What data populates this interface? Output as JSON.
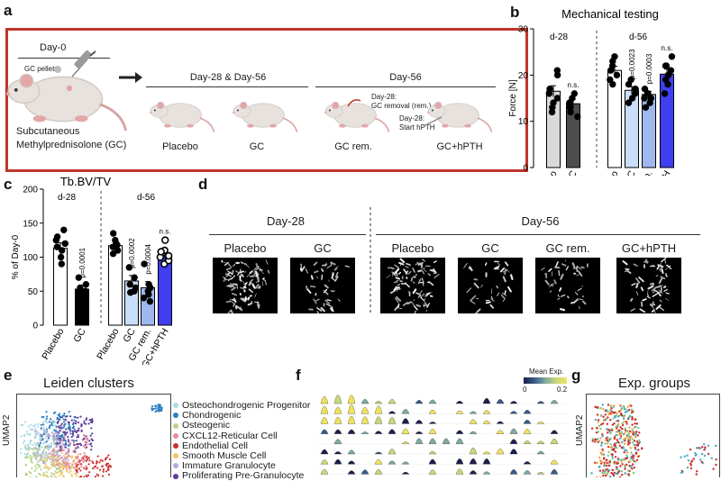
{
  "panel_labels": {
    "a": "a",
    "b": "b",
    "c": "c",
    "d": "d",
    "e": "e",
    "f": "f",
    "g": "g"
  },
  "panel_a": {
    "day0": "Day-0",
    "gc_pellet": "GC pellet",
    "subcutaneous": "Subcutaneous",
    "methylpred": "Methylprednisolone (GC)",
    "day28_56": "Day-28 & Day-56",
    "day56": "Day-56",
    "groups": [
      "Placebo",
      "GC",
      "GC rem.",
      "GC+hPTH"
    ],
    "note_removal_1": "Day-28:",
    "note_removal_2": "GC removal (rem.)",
    "note_hpth_1": "Day-28:",
    "note_hpth_2": "Start hPTH",
    "colors": {
      "border": "#c0352b",
      "mouse": "#e8e2df",
      "mouse_ear": "#e3a7a7",
      "syringe": "#8a8a8a"
    }
  },
  "chart_data": [
    {
      "id": "mechanical-testing",
      "type": "bar",
      "title": "Mechanical testing",
      "ylabel": "Force [N]",
      "ylim": [
        0,
        30
      ],
      "yticks": [
        0,
        10,
        20,
        30
      ],
      "groups": [
        "d-28",
        "d-56"
      ],
      "categories": [
        "Placebo",
        "GC",
        "Placebo",
        "GC",
        "GC rem.",
        "GC+hPTH"
      ],
      "group_index": [
        0,
        0,
        1,
        1,
        1,
        1
      ],
      "values": [
        16.5,
        13.8,
        21.0,
        16.7,
        15.8,
        20.2
      ],
      "errors": [
        1.2,
        1.0,
        0.9,
        0.8,
        0.7,
        1.1
      ],
      "points": [
        [
          21,
          20,
          16,
          13,
          15,
          17,
          12,
          14
        ],
        [
          16,
          12,
          14,
          11,
          15,
          13
        ],
        [
          24,
          22,
          21,
          20,
          18,
          23,
          19
        ],
        [
          17,
          14,
          16,
          19,
          18,
          15
        ],
        [
          16,
          15,
          14,
          17,
          13,
          16,
          15
        ],
        [
          24,
          22,
          20,
          18,
          21,
          16,
          19,
          22
        ]
      ],
      "fills": [
        "#d9d9d9",
        "#4d4d4d",
        "#ffffff",
        "#c9defa",
        "#9fb8ef",
        "#3f3ff0"
      ],
      "point_colors": [
        "#000000",
        "#000000",
        "#000000",
        "#000000",
        "#000000",
        "#000000"
      ],
      "annotations": [
        "",
        "n.s.",
        "",
        "p=0.0023",
        "p=0.0003",
        "n.s."
      ]
    },
    {
      "id": "tb-bv-tv",
      "type": "bar",
      "title": "Tb.BV/TV",
      "ylabel": "% of Day-0",
      "ylim": [
        0,
        200
      ],
      "yticks": [
        0,
        50,
        100,
        150,
        200
      ],
      "groups": [
        "d-28",
        "d-56"
      ],
      "categories": [
        "Placebo",
        "GC",
        "Placebo",
        "GC",
        "GC rem.",
        "GC+hPTH"
      ],
      "group_index": [
        0,
        0,
        1,
        1,
        1,
        1
      ],
      "values": [
        113,
        53,
        117,
        65,
        55,
        103
      ],
      "errors": [
        8,
        6,
        5,
        8,
        9,
        6
      ],
      "points": [
        [
          140,
          120,
          115,
          100,
          90,
          110,
          125,
          130
        ],
        [
          60,
          45,
          38,
          55,
          70,
          50
        ],
        [
          135,
          120,
          110,
          105,
          125,
          115,
          118
        ],
        [
          85,
          70,
          55,
          60,
          50,
          48
        ],
        [
          90,
          60,
          50,
          40,
          35,
          55,
          45
        ],
        [
          125,
          110,
          100,
          90,
          108,
          95,
          102
        ]
      ],
      "fills": [
        "#ffffff",
        "#000000",
        "#ffffff",
        "#c9defa",
        "#9fb8ef",
        "#3f3ff0"
      ],
      "point_colors": [
        "#000000",
        "#000000",
        "#000000",
        "#000000",
        "#000000",
        "#ffffff"
      ],
      "annotations": [
        "",
        "p=0.0001",
        "",
        "p=0.0002",
        "p=0.0004",
        "n.s."
      ]
    }
  ],
  "panel_d": {
    "day28": "Day-28",
    "day56": "Day-56",
    "images": [
      "Placebo",
      "GC",
      "Placebo",
      "GC",
      "GC rem.",
      "GC+hPTH"
    ],
    "density": [
      0.85,
      0.45,
      0.8,
      0.3,
      0.32,
      0.55
    ]
  },
  "panel_e": {
    "title": "Leiden clusters",
    "ylabel": "UMAP2",
    "clusters": [
      {
        "name": "Osteochondrogenic Progenitor",
        "color": "#a9dbe0"
      },
      {
        "name": "Chondrogenic",
        "color": "#2e7fc2"
      },
      {
        "name": "Osteogenic",
        "color": "#b8d48a"
      },
      {
        "name": "CXCL12-Reticular Cell",
        "color": "#e88a9a"
      },
      {
        "name": "Endothelial Cell",
        "color": "#d22c2c"
      },
      {
        "name": "Smooth Muscle Cell",
        "color": "#f0c766"
      },
      {
        "name": "Immature Granulocyte",
        "color": "#b9a8d6"
      },
      {
        "name": "Proliferating Pre-Granulocyte",
        "color": "#5e3a97"
      }
    ]
  },
  "panel_f": {
    "legend_title": "Mean Exp.",
    "legend_min": "0",
    "legend_max": "0.2"
  },
  "panel_g": {
    "title": "Exp. groups",
    "ylabel": "UMAP2"
  }
}
